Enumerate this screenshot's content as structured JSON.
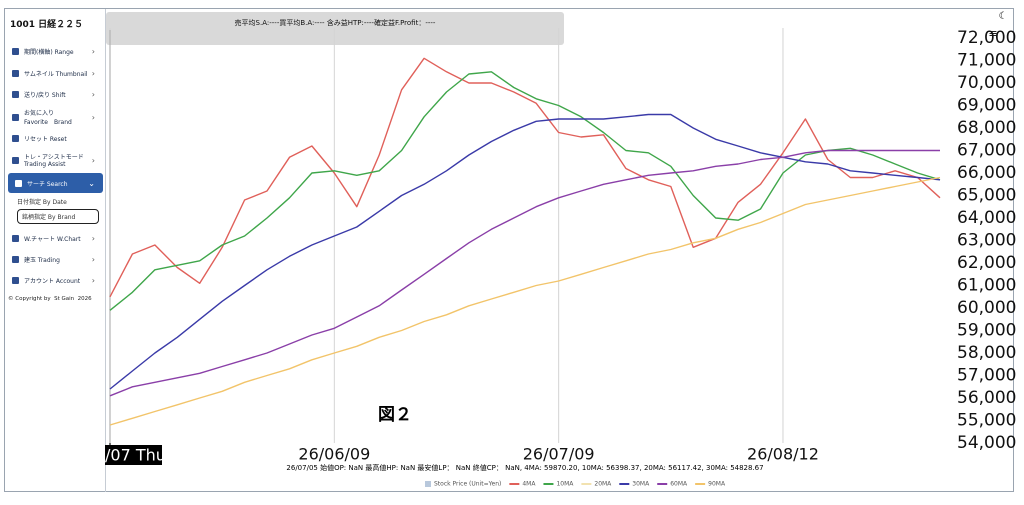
{
  "header": {
    "brand": "1001 日経２２５",
    "summary": "売平均S.A:----買平均B.A:---- 含み益HTP:----確定益F.Profit：----"
  },
  "sidebar": {
    "items": [
      "期間(横軸) Range",
      "サムネイル Thumbnail",
      "送り/戻り Shift",
      "お気に入り",
      "Favorite　Brand",
      "リセット Reset",
      "トレ・アシストモード",
      "Trading Assist",
      "サーチ Search",
      "日付指定 By Date",
      "銘柄指定 By Brand",
      "W.チャート W.Chart",
      "建玉 Trading",
      "アカウント Account"
    ],
    "copyright": "© Copyright by",
    "company": "St Gain",
    "year": "2026"
  },
  "chart_data": {
    "type": "line",
    "annotation": "図２",
    "info": "26/07/05 始値OP: NaN  最高値HP: NaN 最安値LP： NaN  終値CP： NaN, 4MA: 59870.20, 10MA: 56398.37, 20MA: 56117.42, 30MA: 54828.67",
    "categories": [
      "/07 Thu",
      null,
      null,
      null,
      null,
      null,
      null,
      null,
      null,
      null,
      "26/06/09",
      null,
      null,
      null,
      null,
      null,
      null,
      null,
      null,
      null,
      "26/07/09",
      null,
      null,
      null,
      null,
      null,
      null,
      null,
      null,
      null,
      "26/08/12",
      null,
      null,
      null,
      null,
      null,
      null,
      null
    ],
    "ylim": [
      54000,
      72000
    ],
    "yticks": [
      {
        "value": 54000,
        "label": "54,000"
      },
      {
        "value": 55000,
        "label": "55,000"
      },
      {
        "value": 56000,
        "label": "56,000"
      },
      {
        "value": 57000,
        "label": "57,000"
      },
      {
        "value": 58000,
        "label": "58,000"
      },
      {
        "value": 59000,
        "label": "59,000"
      },
      {
        "value": 60000,
        "label": "60,000"
      },
      {
        "value": 61000,
        "label": "61,000"
      },
      {
        "value": 62000,
        "label": "62,000"
      },
      {
        "value": 63000,
        "label": "63,000"
      },
      {
        "value": 64000,
        "label": "64,000"
      },
      {
        "value": 65000,
        "label": "65,000"
      },
      {
        "value": 66000,
        "label": "66,000"
      },
      {
        "value": 67000,
        "label": "67,000"
      },
      {
        "value": 68000,
        "label": "68,000"
      },
      {
        "value": 69000,
        "label": "69,000"
      },
      {
        "value": 70000,
        "label": "70,000"
      },
      {
        "value": 71000,
        "label": "71,000"
      },
      {
        "value": 72000,
        "label": "72,000"
      }
    ],
    "grid": "x",
    "series": [
      {
        "name": "Stock Price (Unit=Yen)",
        "color": "#b8c8dc",
        "values": [
          null,
          null,
          null,
          null,
          null,
          null,
          null,
          null,
          null,
          null,
          null,
          null,
          null,
          null,
          null,
          null,
          null,
          null,
          null,
          null,
          null,
          null,
          null,
          null,
          null,
          null,
          null,
          null,
          null,
          null,
          null,
          null,
          null,
          null,
          null,
          null,
          null,
          null
        ]
      },
      {
        "name": "4MA",
        "color": "#e0605a",
        "values": [
          60500,
          62400,
          62800,
          61800,
          61100,
          62700,
          64800,
          65200,
          66700,
          67200,
          66000,
          64500,
          66800,
          69700,
          71100,
          70500,
          70000,
          70000,
          69600,
          69100,
          67800,
          67600,
          67700,
          66200,
          65700,
          65400,
          62700,
          63100,
          64700,
          65500,
          66900,
          68400,
          66600,
          65800,
          65800,
          66100,
          65800,
          64900
        ]
      },
      {
        "name": "10MA",
        "color": "#3fa64a",
        "values": [
          59900,
          60700,
          61700,
          61900,
          62100,
          62800,
          63200,
          64000,
          64900,
          66000,
          66100,
          65900,
          66100,
          67000,
          68500,
          69600,
          70400,
          70500,
          69800,
          69300,
          69000,
          68500,
          67800,
          67000,
          66900,
          66300,
          65000,
          64000,
          63900,
          64400,
          66000,
          66800,
          67000,
          67100,
          66800,
          66400,
          66000,
          65700
        ]
      },
      {
        "name": "20MA",
        "color": "#f2e2b0",
        "values": [
          null,
          null,
          null,
          null,
          null,
          null,
          null,
          null,
          null,
          null,
          null,
          null,
          null,
          null,
          null,
          null,
          null,
          null,
          null,
          null,
          null,
          null,
          null,
          null,
          null,
          null,
          null,
          null,
          null,
          null,
          null,
          null,
          null,
          null,
          null,
          null,
          null,
          null
        ]
      },
      {
        "name": "30MA",
        "color": "#3a3aa8",
        "values": [
          56400,
          57200,
          58000,
          58700,
          59500,
          60300,
          61000,
          61700,
          62300,
          62800,
          63200,
          63600,
          64300,
          65000,
          65500,
          66100,
          66800,
          67400,
          67900,
          68300,
          68400,
          68400,
          68400,
          68500,
          68600,
          68600,
          68000,
          67500,
          67200,
          66900,
          66700,
          66500,
          66400,
          66100,
          66000,
          65900,
          65800,
          65700
        ]
      },
      {
        "name": "60MA",
        "color": "#8a3fa8",
        "values": [
          56100,
          56500,
          56700,
          56900,
          57100,
          57400,
          57700,
          58000,
          58400,
          58800,
          59100,
          59600,
          60100,
          60800,
          61500,
          62200,
          62900,
          63500,
          64000,
          64500,
          64900,
          65200,
          65500,
          65700,
          65900,
          66000,
          66100,
          66300,
          66400,
          66600,
          66700,
          66900,
          67000,
          67000,
          67000,
          67000,
          67000,
          67000
        ]
      },
      {
        "name": "90MA",
        "color": "#f2c46a",
        "values": [
          54800,
          55100,
          55400,
          55700,
          56000,
          56300,
          56700,
          57000,
          57300,
          57700,
          58000,
          58300,
          58700,
          59000,
          59400,
          59700,
          60100,
          60400,
          60700,
          61000,
          61200,
          61500,
          61800,
          62100,
          62400,
          62600,
          62900,
          63100,
          63500,
          63800,
          64200,
          64600,
          64800,
          65000,
          65200,
          65400,
          65600,
          65800
        ]
      }
    ]
  }
}
